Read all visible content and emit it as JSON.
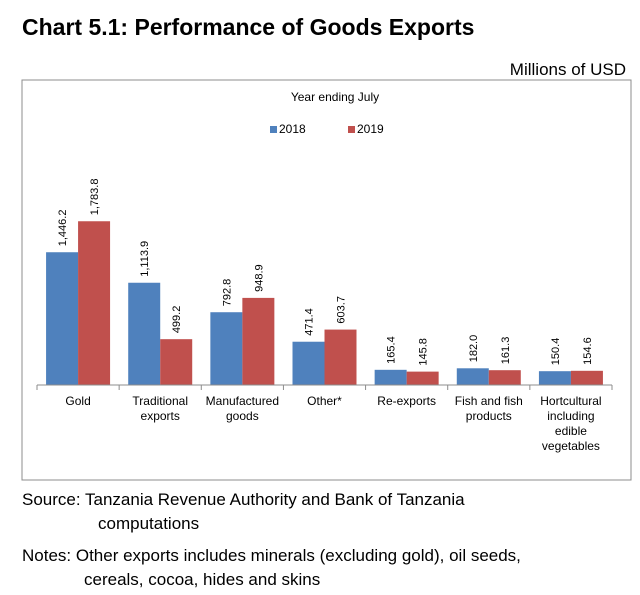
{
  "header": {
    "title": "Chart 5.1:  Performance of Goods Exports",
    "units": "Millions of USD"
  },
  "chart_data": {
    "type": "bar",
    "title": "Year ending July",
    "xlabel": "",
    "ylabel": "",
    "ylim": [
      0,
      2000
    ],
    "grid": false,
    "legend_position": "top-center",
    "categories": [
      [
        "Gold"
      ],
      [
        "Traditional",
        "exports"
      ],
      [
        "Manufactured",
        "goods"
      ],
      [
        "Other*"
      ],
      [
        "Re-exports"
      ],
      [
        "Fish and fish",
        "products"
      ],
      [
        "Hortcultural",
        "including",
        "edible",
        "vegetables"
      ]
    ],
    "series": [
      {
        "name": "2018",
        "color": "#4f81bd",
        "values": [
          1446.2,
          1113.9,
          792.8,
          471.4,
          165.4,
          182.0,
          150.4
        ],
        "labels": [
          "1,446.2",
          "1,113.9",
          "792.8",
          "471.4",
          "165.4",
          "182.0",
          "150.4"
        ]
      },
      {
        "name": "2019",
        "color": "#c0504d",
        "values": [
          1783.8,
          499.2,
          948.9,
          603.7,
          145.8,
          161.3,
          154.6
        ],
        "labels": [
          "1,783.8",
          "499.2",
          "948.9",
          "603.7",
          "145.8",
          "161.3",
          "154.6"
        ]
      }
    ]
  },
  "footer": {
    "source_line1": "Source: Tanzania Revenue Authority and Bank of Tanzania",
    "source_line2": "computations",
    "notes_line1": "Notes: Other exports includes minerals (excluding gold), oil seeds,",
    "notes_line2": "cereals, cocoa, hides and skins"
  }
}
